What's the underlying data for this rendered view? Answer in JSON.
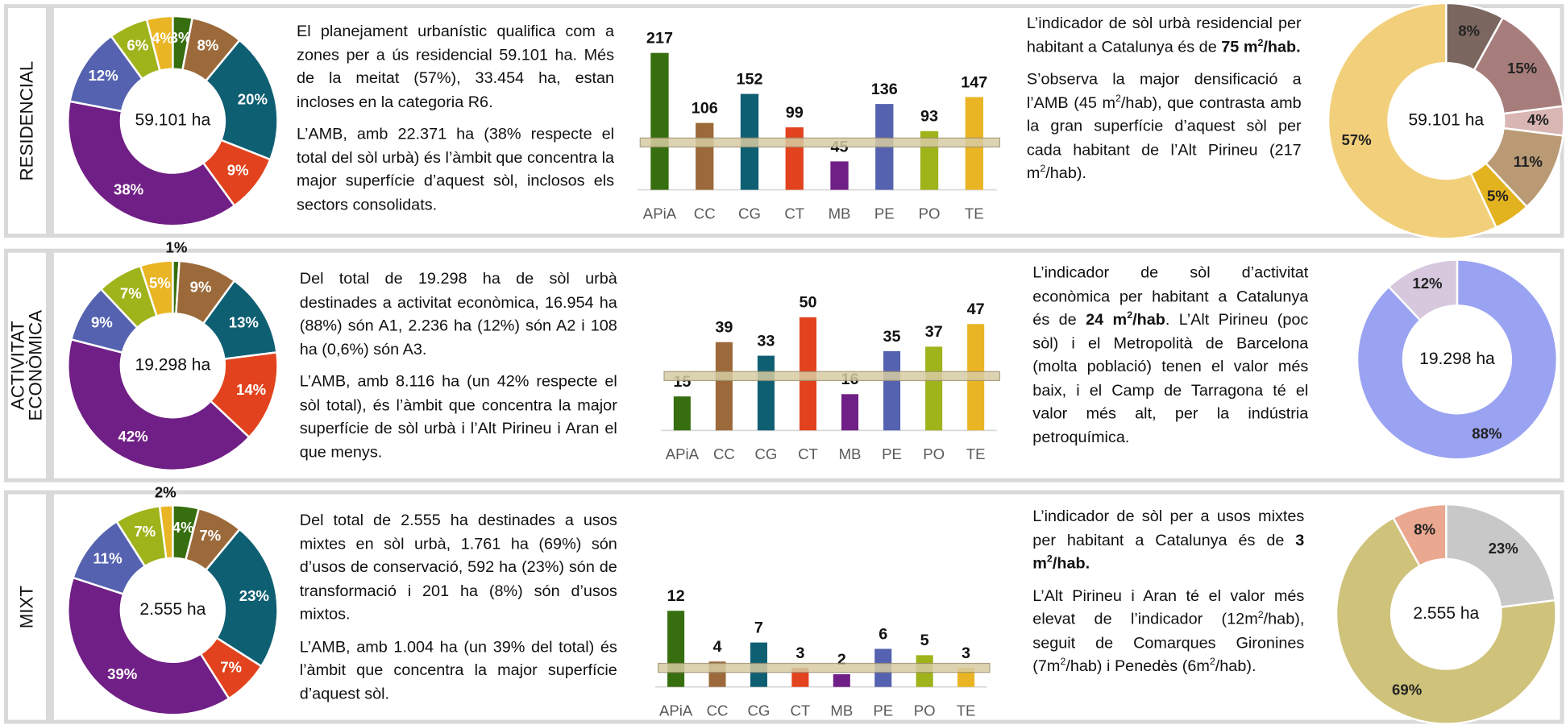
{
  "rows": [
    {
      "label": [
        "RESIDENCIAL"
      ],
      "left": [
        [
          "El planejament urbanístic qualifica com a zones per a ús residencial 59.101 ha. Més de la meitat (57%), 33.454 ha, estan incloses en la categoria R6."
        ],
        [
          "L’AMB, amb 22.371 ha (38% respecte el total del sòl urbà) és l’àmbit que concentra la major superfície d’aquest sòl, inclosos els sectors consolidats."
        ]
      ],
      "right": [
        [
          "L’indicador de sòl urbà residencial per habitant a Catalunya és de ",
          {
            "text": "75 m",
            "bold": true
          },
          {
            "text": "2",
            "bold": true,
            "sup": true
          },
          {
            "text": "/hab.",
            "bold": true
          }
        ],
        [
          "S’observa la major densificació a l’AMB (45 m",
          {
            "text": "2",
            "sup": true
          },
          "/hab), que contrasta amb la gran superfície d’aquest sòl per cada habitant de l’Alt Pirineu (217 m",
          {
            "text": "2",
            "sup": true
          },
          "/hab)."
        ]
      ]
    },
    {
      "label": [
        "ACTIVITAT",
        "ECONÒMICA"
      ],
      "left": [
        [
          "Del total de 19.298 ha de sòl urbà destinades a activitat econòmica, 16.954 ha (88%) són A1, 2.236 ha (12%) són A2 i 108 ha (0,6%) són A3."
        ],
        [
          "L’AMB, amb 8.116 ha (un 42% respecte el sòl total), és l’àmbit que concentra la major superfície de sòl urbà i l’Alt Pirineu i Aran el que menys."
        ]
      ],
      "right": [
        [
          "L’indicador de sòl d’activitat econòmica per habitant a Catalunya és de ",
          {
            "text": "24 m",
            "bold": true
          },
          {
            "text": "2",
            "bold": true,
            "sup": true
          },
          {
            "text": "/hab",
            "bold": true
          },
          ". L’Alt Pirineu (poc sòl) i el Metropolità de Barcelona (molta població) tenen el valor més baix, i el Camp de Tarragona té el valor més alt, per la indústria petroquímica."
        ]
      ]
    },
    {
      "label": [
        "MIXT"
      ],
      "left": [
        [
          "Del total de 2.555 ha destinades a usos mixtes en sòl urbà, 1.761 ha (69%) són d’usos de conservació, 592 ha (23%) són de transformació i 201 ha (8%) són d’usos mixtos."
        ],
        [
          "L’AMB, amb 1.004 ha (un 39% del total) és l’àmbit que concentra la major superfície d’aquest sòl."
        ]
      ],
      "right": [
        [
          "L’indicador de sòl per a usos mixtes per habitant a Catalunya és de ",
          {
            "text": "3 m",
            "bold": true
          },
          {
            "text": "2",
            "bold": true,
            "sup": true
          },
          {
            "text": "/hab.",
            "bold": true
          }
        ],
        [
          "L’Alt Pirineu i Aran té el valor més elevat de l’indicador (12m",
          {
            "text": "2",
            "sup": true
          },
          "/hab), seguit de Comarques Gironines (7m",
          {
            "text": "2",
            "sup": true
          },
          "/hab) i Penedès (6m",
          {
            "text": "2",
            "sup": true
          },
          "/hab)."
        ]
      ]
    }
  ],
  "chart_data": [
    {
      "type": "donut",
      "center_label": "59.101 ha",
      "values": [
        3,
        8,
        20,
        9,
        38,
        12,
        6,
        4
      ],
      "value_labels": [
        "3%",
        "8%",
        "20%",
        "9%",
        "38%",
        "12%",
        "6%",
        "4%"
      ],
      "colors": [
        "#376e0f",
        "#9c6a3a",
        "#0f5f73",
        "#e2431e",
        "#701f86",
        "#5462b0",
        "#9fb31a",
        "#eab524"
      ],
      "label_color": "#ffffff"
    },
    {
      "type": "bar",
      "categories": [
        "APiA",
        "CC",
        "CG",
        "CT",
        "MB",
        "PE",
        "PO",
        "TE"
      ],
      "values": [
        217,
        106,
        152,
        99,
        45,
        136,
        93,
        147
      ],
      "colors": [
        "#376e0f",
        "#9c6a3a",
        "#0f5f73",
        "#e2431e",
        "#701f86",
        "#5462b0",
        "#9fb31a",
        "#eab524"
      ],
      "ylim": [
        0,
        250
      ],
      "reference": 75,
      "reference_color": "#d8cca3"
    },
    {
      "type": "donut",
      "center_label": "59.101 ha",
      "values": [
        8,
        15,
        4,
        11,
        5,
        57
      ],
      "value_labels": [
        "8%",
        "15%",
        "4%",
        "11%",
        "5%",
        "57%"
      ],
      "colors": [
        "#7b6760",
        "#a77d7b",
        "#d9b6b4",
        "#b99a74",
        "#e3b21f",
        "#f2cf7a"
      ],
      "label_color": "#222222"
    },
    {
      "type": "donut",
      "center_label": "19.298 ha",
      "values": [
        1,
        9,
        13,
        14,
        42,
        9,
        7,
        5
      ],
      "value_labels": [
        "1%",
        "9%",
        "13%",
        "14%",
        "42%",
        "9%",
        "7%",
        "5%"
      ],
      "colors": [
        "#376e0f",
        "#9c6a3a",
        "#0f5f73",
        "#e2431e",
        "#701f86",
        "#5462b0",
        "#9fb31a",
        "#eab524"
      ],
      "label_color": "#ffffff"
    },
    {
      "type": "bar",
      "categories": [
        "APiA",
        "CC",
        "CG",
        "CT",
        "MB",
        "PE",
        "PO",
        "TE"
      ],
      "values": [
        15,
        39,
        33,
        50,
        16,
        35,
        37,
        47
      ],
      "colors": [
        "#376e0f",
        "#9c6a3a",
        "#0f5f73",
        "#e2431e",
        "#701f86",
        "#5462b0",
        "#9fb31a",
        "#eab524"
      ],
      "ylim": [
        0,
        60
      ],
      "reference": 24,
      "reference_color": "#d8cca3"
    },
    {
      "type": "donut",
      "center_label": "19.298 ha",
      "values": [
        88,
        12
      ],
      "value_labels": [
        "88%",
        "12%"
      ],
      "colors": [
        "#9aa3f2",
        "#d7c8de"
      ],
      "label_color": "#222222"
    },
    {
      "type": "donut",
      "center_label": "2.555 ha",
      "values": [
        4,
        7,
        23,
        7,
        39,
        11,
        7,
        2
      ],
      "value_labels": [
        "4%",
        "7%",
        "23%",
        "7%",
        "39%",
        "11%",
        "7%",
        "2%"
      ],
      "colors": [
        "#376e0f",
        "#9c6a3a",
        "#0f5f73",
        "#e2431e",
        "#701f86",
        "#5462b0",
        "#9fb31a",
        "#eab524"
      ],
      "label_color": "#ffffff"
    },
    {
      "type": "bar",
      "categories": [
        "APiA",
        "CC",
        "CG",
        "CT",
        "MB",
        "PE",
        "PO",
        "TE"
      ],
      "values": [
        12,
        4,
        7,
        3,
        2,
        6,
        5,
        3
      ],
      "colors": [
        "#376e0f",
        "#9c6a3a",
        "#0f5f73",
        "#e2431e",
        "#701f86",
        "#5462b0",
        "#9fb31a",
        "#eab524"
      ],
      "ylim": [
        0,
        14
      ],
      "reference": 3,
      "reference_color": "#d8cca3"
    },
    {
      "type": "donut",
      "center_label": "2.555 ha",
      "values": [
        23,
        69,
        8
      ],
      "value_labels": [
        "23%",
        "69%",
        "8%"
      ],
      "colors": [
        "#c8c8c8",
        "#cfc27a",
        "#e9a88f"
      ],
      "label_color": "#222222"
    }
  ]
}
